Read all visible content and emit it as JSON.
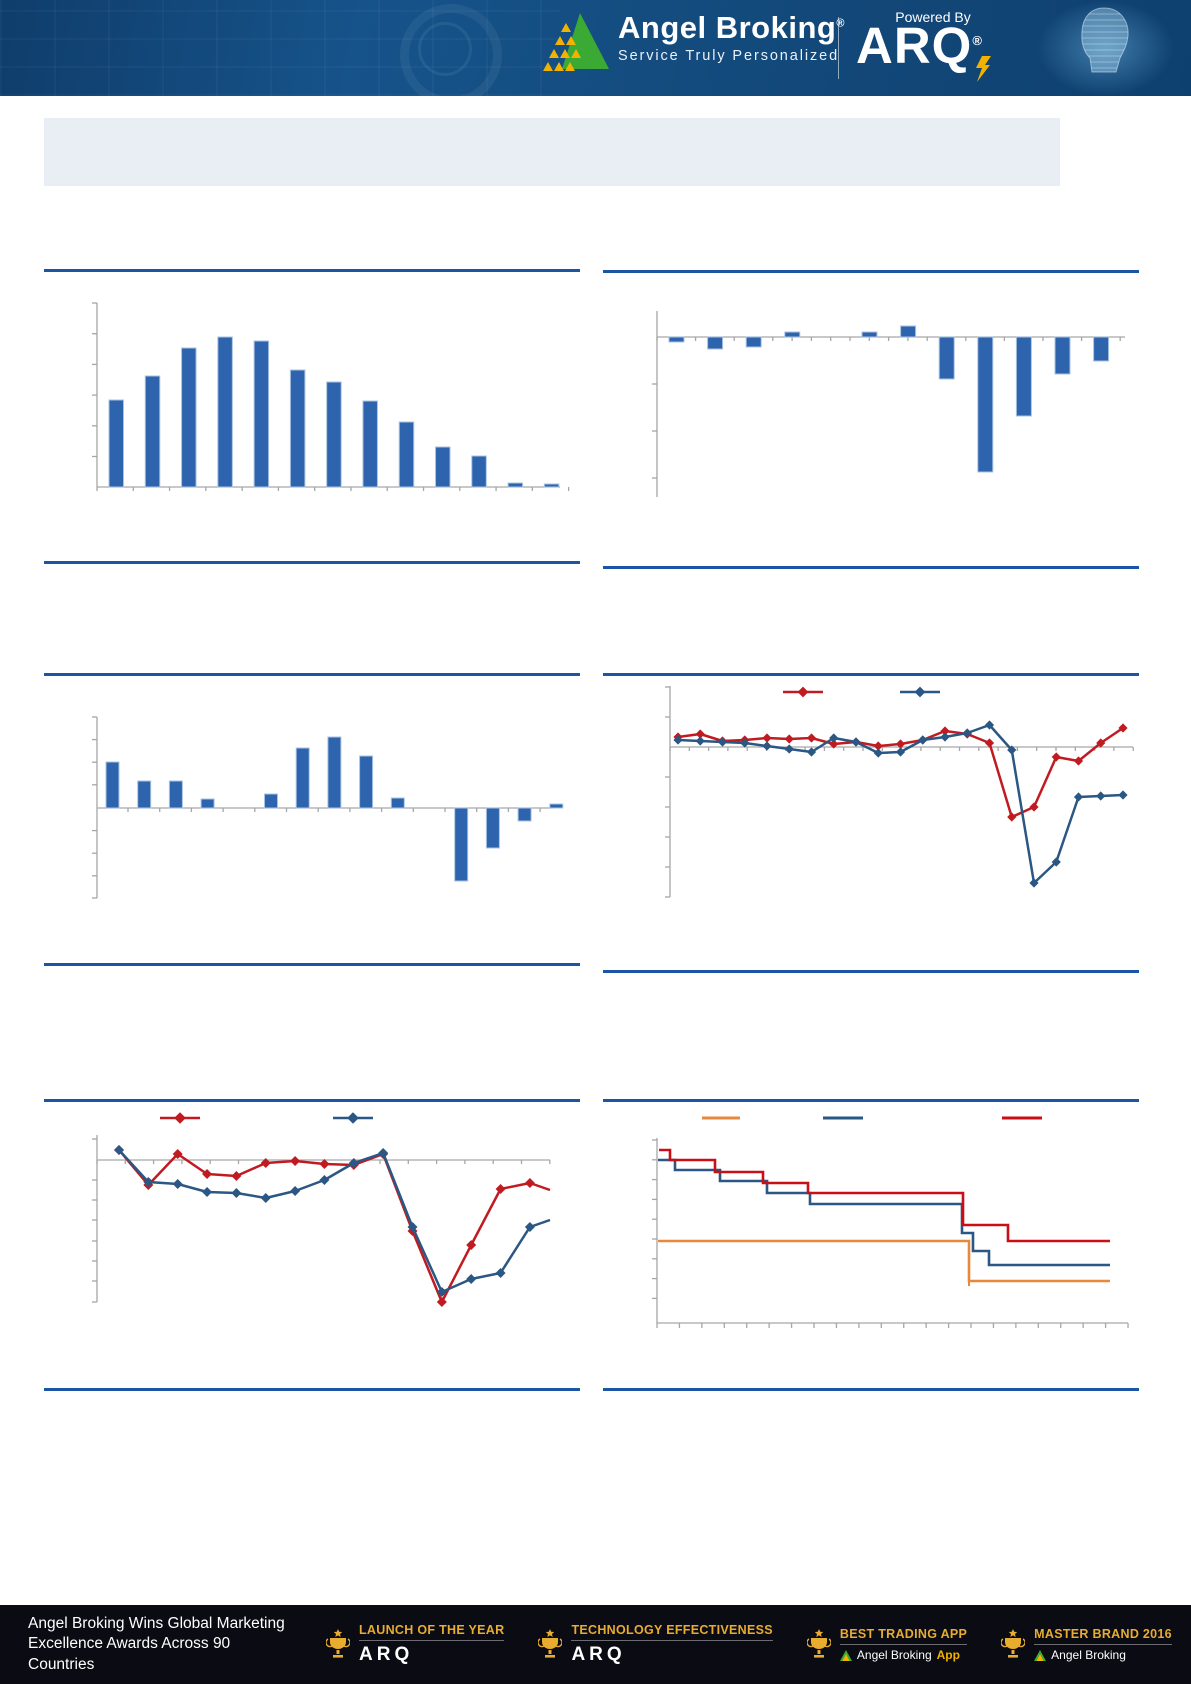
{
  "header": {
    "brand": "Angel Broking",
    "registered": "®",
    "tagline": "Service Truly Personalized",
    "powered_by": "Powered By",
    "arq": "ARQ",
    "colors": {
      "banner_bg": "#134a7c",
      "logo_green": "#3aaa35",
      "logo_yellow": "#f3b200",
      "bolt_yellow": "#f3b200"
    }
  },
  "title_box": {
    "text": ""
  },
  "colors": {
    "bar_blue": "#2e64ae",
    "bar_edge": "#a9c3e2",
    "line_red": "#c11b22",
    "line_dark_blue": "#2a5783",
    "line_orange": "#e8883c",
    "axis_gray": "#a6a6a6",
    "rule_blue": "#1c55a6"
  },
  "charts": [
    {
      "id": "c1",
      "name": "bar-chart-distribution",
      "chart_data": {
        "type": "bar",
        "bar_color": "#2e64ae",
        "bar_edge": "#a9c3e2",
        "grid": false,
        "legend": false,
        "values": [
          87,
          111,
          139,
          150,
          146,
          117,
          105,
          86,
          65,
          40,
          31,
          4,
          3
        ]
      }
    },
    {
      "id": "c2",
      "name": "bar-chart-pos-neg",
      "chart_data": {
        "type": "bar",
        "bar_color": "#2e64ae",
        "bar_edge": "#a9c3e2",
        "grid": false,
        "legend": false,
        "values": [
          -5,
          -12,
          -10,
          5,
          0,
          5,
          11,
          -42,
          -135,
          -79,
          -37,
          -24
        ]
      }
    },
    {
      "id": "c3",
      "name": "bar-chart-pos-neg-2",
      "chart_data": {
        "type": "bar",
        "bar_color": "#2e64ae",
        "bar_edge": "#a9c3e2",
        "grid": false,
        "legend": false,
        "values": [
          46,
          27,
          27,
          9,
          0,
          14,
          60,
          71,
          52,
          10,
          0,
          -73,
          -40,
          -13,
          4
        ]
      }
    },
    {
      "id": "c4",
      "name": "line-chart-two-series",
      "chart_data": {
        "type": "line",
        "grid": false,
        "legend_position": "top",
        "series": [
          {
            "name": "red-series",
            "color": "#c11b22",
            "marker": "diamond",
            "values": [
              10,
              13,
              6,
              7,
              9,
              8,
              9,
              3,
              5,
              1,
              3,
              7,
              16,
              13,
              4,
              -70,
              -60,
              -10,
              -14,
              4,
              19
            ]
          },
          {
            "name": "blue-series",
            "color": "#2a5783",
            "marker": "diamond",
            "values": [
              7,
              6,
              5,
              4,
              1,
              -2,
              -5,
              9,
              5,
              -6,
              -5,
              7,
              10,
              14,
              22,
              -3,
              -136,
              -115,
              -50,
              -49,
              -48
            ]
          }
        ]
      }
    },
    {
      "id": "c5",
      "name": "line-chart-two-series-2",
      "chart_data": {
        "type": "line",
        "grid": false,
        "legend_position": "top",
        "series": [
          {
            "name": "red-series",
            "color": "#c11b22",
            "marker": "diamond",
            "tail": -30,
            "values": [
              10,
              -25,
              6,
              -14,
              -16,
              -3,
              -1,
              -4,
              -5,
              6,
              -71,
              -142,
              -85,
              -29,
              -23
            ]
          },
          {
            "name": "blue-series",
            "color": "#2a5783",
            "marker": "diamond",
            "tail": -60,
            "values": [
              10,
              -22,
              -24,
              -32,
              -33,
              -38,
              -31,
              -20,
              -3,
              7,
              -67,
              -132,
              -119,
              -113,
              -67
            ]
          }
        ]
      }
    },
    {
      "id": "c6",
      "name": "step-line-chart-three-series",
      "chart_data": {
        "type": "step",
        "grid": false,
        "legend_position": "top",
        "series": [
          {
            "name": "orange-series",
            "color": "#e8883c",
            "spike": [
              312,
              103,
              148
            ],
            "steps": [
              [
                1,
                103
              ],
              [
                312,
                143
              ]
            ]
          },
          {
            "name": "blue-series",
            "color": "#2a5783",
            "steps": [
              [
                1,
                22
              ],
              [
                18,
                32
              ],
              [
                63,
                43
              ],
              [
                110,
                55
              ],
              [
                153,
                66
              ],
              [
                305,
                95
              ],
              [
                316,
                113
              ],
              [
                332,
                127
              ]
            ]
          },
          {
            "name": "red-series",
            "color": "#c90e15",
            "steps": [
              [
                2,
                12
              ],
              [
                13,
                22
              ],
              [
                58,
                34
              ],
              [
                106,
                45
              ],
              [
                151,
                55
              ],
              [
                306,
                87
              ],
              [
                351,
                103
              ]
            ]
          }
        ]
      }
    }
  ],
  "footer": {
    "headline_line1": "Angel Broking Wins Global Marketing",
    "headline_line2": "Excellence Awards Across 90 Countries",
    "awards": [
      {
        "title": "LAUNCH OF THE YEAR",
        "subtitle": "ARQ",
        "subtitle_bold": "",
        "style": "arq"
      },
      {
        "title": "TECHNOLOGY EFFECTIVENESS",
        "subtitle": "ARQ",
        "subtitle_bold": "",
        "style": "arq"
      },
      {
        "title": "BEST TRADING APP",
        "subtitle": "Angel Broking",
        "subtitle_bold": "App",
        "style": "logo"
      },
      {
        "title": "MASTER BRAND 2016",
        "subtitle": "Angel Broking",
        "subtitle_bold": "",
        "style": "logo"
      }
    ],
    "colors": {
      "bg": "#0b0b13",
      "gold": "#e8ac30"
    }
  }
}
